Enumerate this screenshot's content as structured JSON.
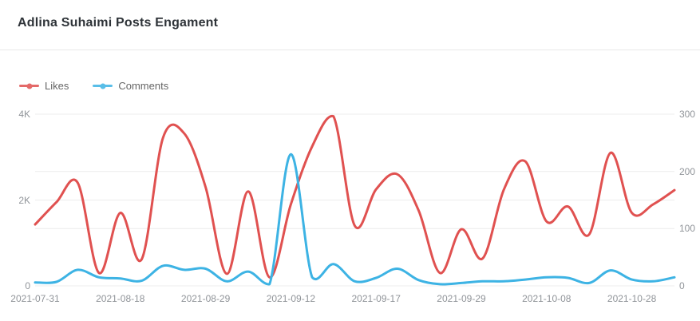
{
  "header": {
    "title": "Adlina Suhaimi Posts Engament"
  },
  "colors": {
    "likes": "#e05150",
    "comments": "#3db3e4",
    "gridline": "#ececec",
    "axis_label": "#909499",
    "legend_text": "#666666",
    "title_text": "#2e3338",
    "divider": "#e9e9e9",
    "background": "#ffffff"
  },
  "chart_data": {
    "type": "line",
    "title": "Adlina Suhaimi Posts Engament",
    "smooth": true,
    "grid": true,
    "legend_position": "top-left",
    "x_axis": {
      "type": "category",
      "visible_tick_labels": [
        "2021-07-31",
        "2021-08-18",
        "2021-08-29",
        "2021-09-12",
        "2021-09-17",
        "2021-09-29",
        "2021-10-08",
        "2021-10-28"
      ],
      "tick_label_point_indices": [
        0,
        4,
        8,
        12,
        16,
        20,
        24,
        28
      ],
      "num_points": 31
    },
    "y_axis_left": {
      "series": "Likes",
      "min": 0,
      "max": 4000,
      "ticks": [
        {
          "label": "4K",
          "value": 4000
        },
        {
          "label": "2K",
          "value": 2000
        },
        {
          "label": "0",
          "value": 0
        }
      ]
    },
    "y_axis_right": {
      "series": "Comments",
      "min": 0,
      "max": 300,
      "ticks": [
        {
          "label": "300",
          "value": 300
        },
        {
          "label": "200",
          "value": 200
        },
        {
          "label": "100",
          "value": 100
        },
        {
          "label": "0",
          "value": 0
        }
      ]
    },
    "series": [
      {
        "name": "Likes",
        "axis": "left",
        "color": "#e05150",
        "values": [
          1430,
          1950,
          2400,
          300,
          1700,
          620,
          3450,
          3550,
          2300,
          280,
          2200,
          200,
          1900,
          3250,
          3950,
          1400,
          2250,
          2600,
          1750,
          300,
          1320,
          640,
          2250,
          2900,
          1500,
          1850,
          1200,
          3100,
          1700,
          1900,
          2230
        ]
      },
      {
        "name": "Comments",
        "axis": "right",
        "color": "#3db3e4",
        "values": [
          6,
          7,
          28,
          15,
          13,
          9,
          35,
          28,
          30,
          8,
          25,
          3,
          230,
          15,
          38,
          8,
          14,
          30,
          10,
          3,
          5,
          8,
          8,
          11,
          15,
          14,
          5,
          27,
          11,
          8,
          15
        ]
      }
    ]
  }
}
